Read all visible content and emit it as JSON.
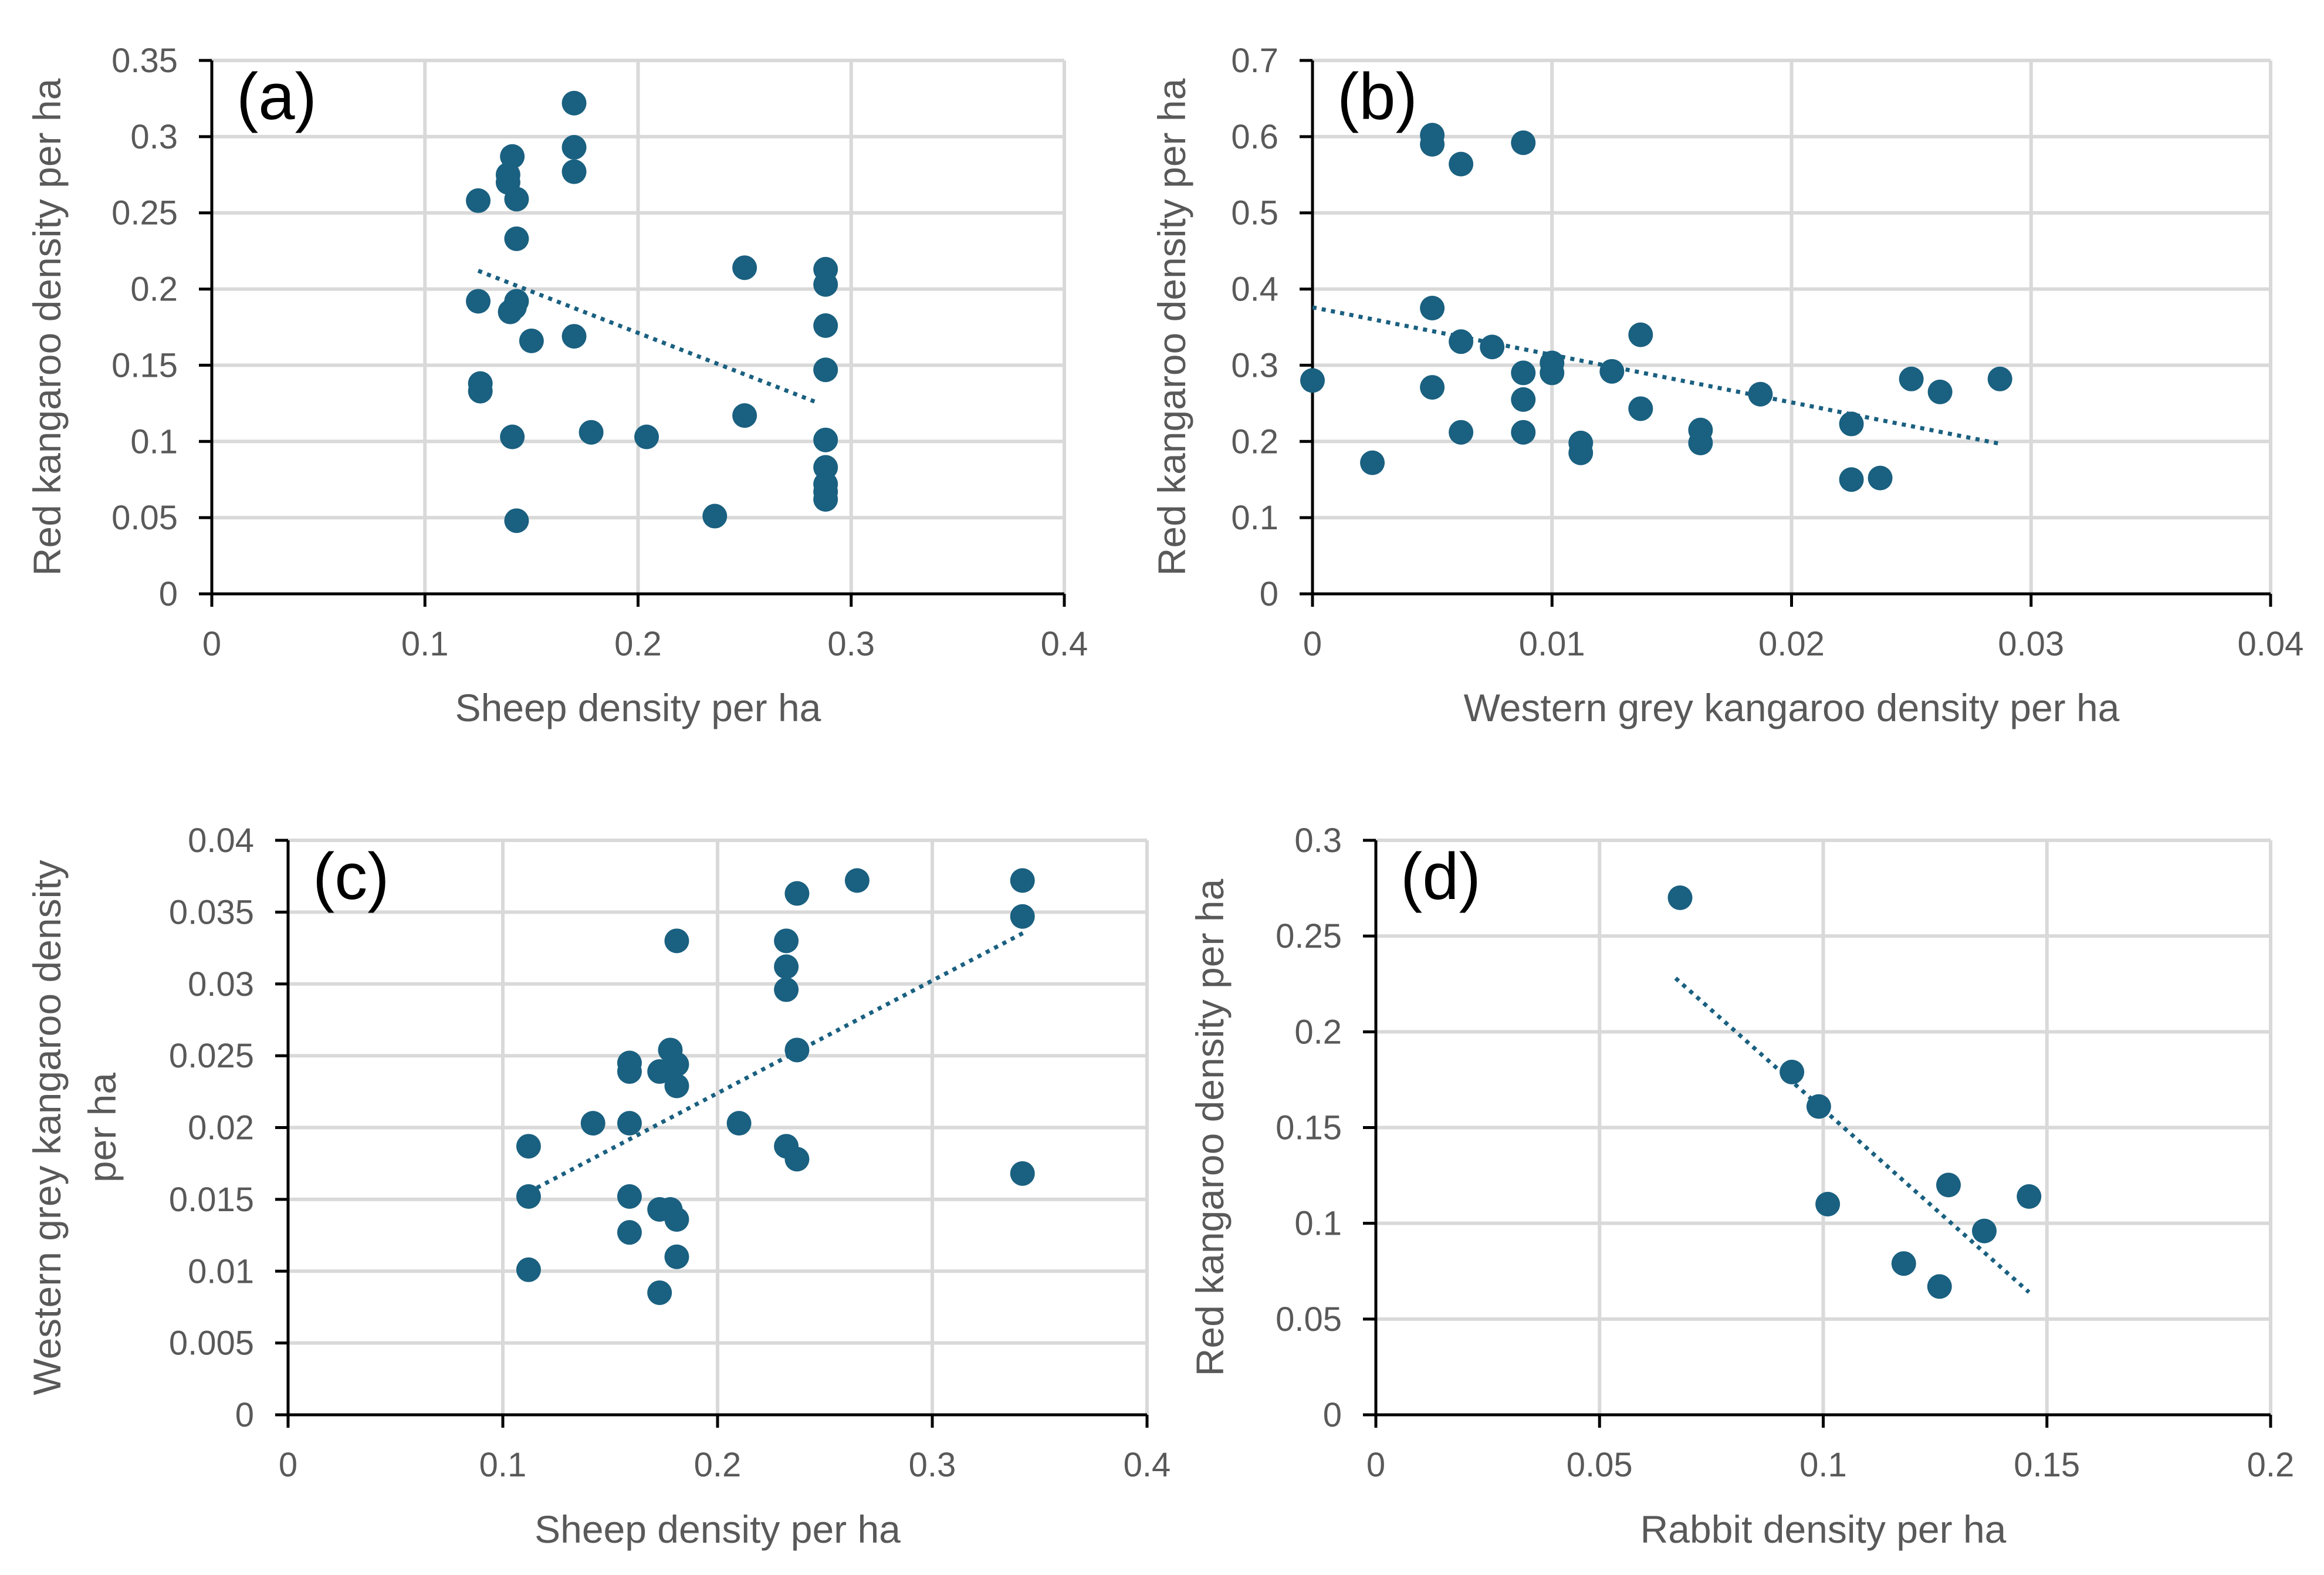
{
  "colors": {
    "marker": "#1a6080",
    "trendline": "#1a6080",
    "grid": "#d9d9d9",
    "axis": "#000000",
    "text": "#595959"
  },
  "chart_data": [
    {
      "id": "a",
      "type": "scatter",
      "panel_label": "(a)",
      "xlabel": "Sheep density per ha",
      "ylabel": "Red kangaroo density per ha",
      "xlim": [
        0,
        0.4
      ],
      "ylim": [
        0,
        0.35
      ],
      "x_ticks": [
        "0",
        "0.1",
        "0.2",
        "0.3",
        "0.4"
      ],
      "y_ticks": [
        "0",
        "0.05",
        "0.1",
        "0.15",
        "0.2",
        "0.25",
        "0.3",
        "0.35"
      ],
      "grid": true,
      "trendline": {
        "style": "dotted linear",
        "from": [
          0.125,
          0.212
        ],
        "to": [
          0.285,
          0.125
        ]
      },
      "points": [
        [
          0.17,
          0.322
        ],
        [
          0.141,
          0.287
        ],
        [
          0.17,
          0.293
        ],
        [
          0.139,
          0.275
        ],
        [
          0.17,
          0.277
        ],
        [
          0.139,
          0.27
        ],
        [
          0.125,
          0.258
        ],
        [
          0.143,
          0.259
        ],
        [
          0.143,
          0.233
        ],
        [
          0.25,
          0.214
        ],
        [
          0.288,
          0.213
        ],
        [
          0.288,
          0.203
        ],
        [
          0.125,
          0.192
        ],
        [
          0.143,
          0.192
        ],
        [
          0.14,
          0.185
        ],
        [
          0.142,
          0.188
        ],
        [
          0.288,
          0.176
        ],
        [
          0.17,
          0.169
        ],
        [
          0.15,
          0.166
        ],
        [
          0.288,
          0.147
        ],
        [
          0.126,
          0.138
        ],
        [
          0.126,
          0.133
        ],
        [
          0.25,
          0.117
        ],
        [
          0.178,
          0.106
        ],
        [
          0.141,
          0.103
        ],
        [
          0.204,
          0.103
        ],
        [
          0.288,
          0.101
        ],
        [
          0.288,
          0.083
        ],
        [
          0.288,
          0.072
        ],
        [
          0.288,
          0.067
        ],
        [
          0.288,
          0.062
        ],
        [
          0.236,
          0.051
        ],
        [
          0.143,
          0.048
        ]
      ]
    },
    {
      "id": "b",
      "type": "scatter",
      "panel_label": "(b)",
      "xlabel": "Western grey kangaroo density per ha",
      "ylabel": "Red kangaroo density per ha",
      "xlim": [
        0,
        0.04
      ],
      "ylim": [
        0,
        0.7
      ],
      "x_ticks": [
        "0",
        "0.01",
        "0.02",
        "0.03",
        "0.04"
      ],
      "y_ticks": [
        "0",
        "0.1",
        "0.2",
        "0.3",
        "0.4",
        "0.5",
        "0.6",
        "0.7"
      ],
      "grid": true,
      "trendline": {
        "style": "dotted linear",
        "from": [
          0.0,
          0.376
        ],
        "to": [
          0.0287,
          0.197
        ]
      },
      "points": [
        [
          0.005,
          0.602
        ],
        [
          0.005,
          0.59
        ],
        [
          0.0088,
          0.592
        ],
        [
          0.0062,
          0.564
        ],
        [
          0.005,
          0.375
        ],
        [
          0.0137,
          0.34
        ],
        [
          0.0062,
          0.331
        ],
        [
          0.0075,
          0.324
        ],
        [
          0.01,
          0.303
        ],
        [
          0.01,
          0.29
        ],
        [
          0.0125,
          0.292
        ],
        [
          0.0088,
          0.29
        ],
        [
          0.0,
          0.28
        ],
        [
          0.025,
          0.282
        ],
        [
          0.0287,
          0.282
        ],
        [
          0.005,
          0.271
        ],
        [
          0.0262,
          0.265
        ],
        [
          0.0187,
          0.262
        ],
        [
          0.0088,
          0.255
        ],
        [
          0.0137,
          0.243
        ],
        [
          0.0225,
          0.223
        ],
        [
          0.0162,
          0.215
        ],
        [
          0.0062,
          0.212
        ],
        [
          0.0088,
          0.212
        ],
        [
          0.0112,
          0.198
        ],
        [
          0.0162,
          0.198
        ],
        [
          0.0112,
          0.185
        ],
        [
          0.0025,
          0.172
        ],
        [
          0.0237,
          0.152
        ],
        [
          0.0225,
          0.15
        ]
      ]
    },
    {
      "id": "c",
      "type": "scatter",
      "panel_label": "(c)",
      "xlabel": "Sheep density per ha",
      "ylabel_lines": [
        "Western grey kangaroo density",
        "per ha"
      ],
      "xlim": [
        0,
        0.4
      ],
      "ylim": [
        0,
        0.04
      ],
      "x_ticks": [
        "0",
        "0.1",
        "0.2",
        "0.3",
        "0.4"
      ],
      "y_ticks": [
        "0",
        "0.005",
        "0.01",
        "0.015",
        "0.02",
        "0.025",
        "0.03",
        "0.035",
        "0.04"
      ],
      "grid": true,
      "trendline": {
        "style": "dotted linear",
        "from": [
          0.112,
          0.0155
        ],
        "to": [
          0.343,
          0.0336
        ]
      },
      "points": [
        [
          0.265,
          0.0372
        ],
        [
          0.342,
          0.0372
        ],
        [
          0.237,
          0.0363
        ],
        [
          0.342,
          0.0347
        ],
        [
          0.181,
          0.033
        ],
        [
          0.232,
          0.033
        ],
        [
          0.232,
          0.0312
        ],
        [
          0.232,
          0.0296
        ],
        [
          0.178,
          0.0254
        ],
        [
          0.237,
          0.0254
        ],
        [
          0.159,
          0.0245
        ],
        [
          0.181,
          0.0244
        ],
        [
          0.159,
          0.0239
        ],
        [
          0.173,
          0.0239
        ],
        [
          0.181,
          0.0229
        ],
        [
          0.142,
          0.0203
        ],
        [
          0.159,
          0.0203
        ],
        [
          0.21,
          0.0203
        ],
        [
          0.112,
          0.0187
        ],
        [
          0.232,
          0.0187
        ],
        [
          0.237,
          0.0178
        ],
        [
          0.342,
          0.0168
        ],
        [
          0.112,
          0.0152
        ],
        [
          0.159,
          0.0152
        ],
        [
          0.173,
          0.0143
        ],
        [
          0.178,
          0.0143
        ],
        [
          0.181,
          0.0136
        ],
        [
          0.159,
          0.0127
        ],
        [
          0.181,
          0.011
        ],
        [
          0.112,
          0.0101
        ],
        [
          0.173,
          0.0085
        ]
      ]
    },
    {
      "id": "d",
      "type": "scatter",
      "panel_label": "(d)",
      "xlabel": "Rabbit density per ha",
      "ylabel": "Red kangaroo density per ha",
      "xlim": [
        0,
        0.2
      ],
      "ylim": [
        0,
        0.3
      ],
      "x_ticks": [
        "0",
        "0.05",
        "0.1",
        "0.15",
        "0.2"
      ],
      "y_ticks": [
        "0",
        "0.05",
        "0.1",
        "0.15",
        "0.2",
        "0.25",
        "0.3"
      ],
      "grid": true,
      "trendline": {
        "style": "dotted linear",
        "from": [
          0.067,
          0.228
        ],
        "to": [
          0.146,
          0.064
        ]
      },
      "points": [
        [
          0.068,
          0.27
        ],
        [
          0.093,
          0.179
        ],
        [
          0.099,
          0.161
        ],
        [
          0.101,
          0.11
        ],
        [
          0.128,
          0.12
        ],
        [
          0.146,
          0.114
        ],
        [
          0.136,
          0.096
        ],
        [
          0.118,
          0.079
        ],
        [
          0.126,
          0.067
        ]
      ]
    }
  ]
}
